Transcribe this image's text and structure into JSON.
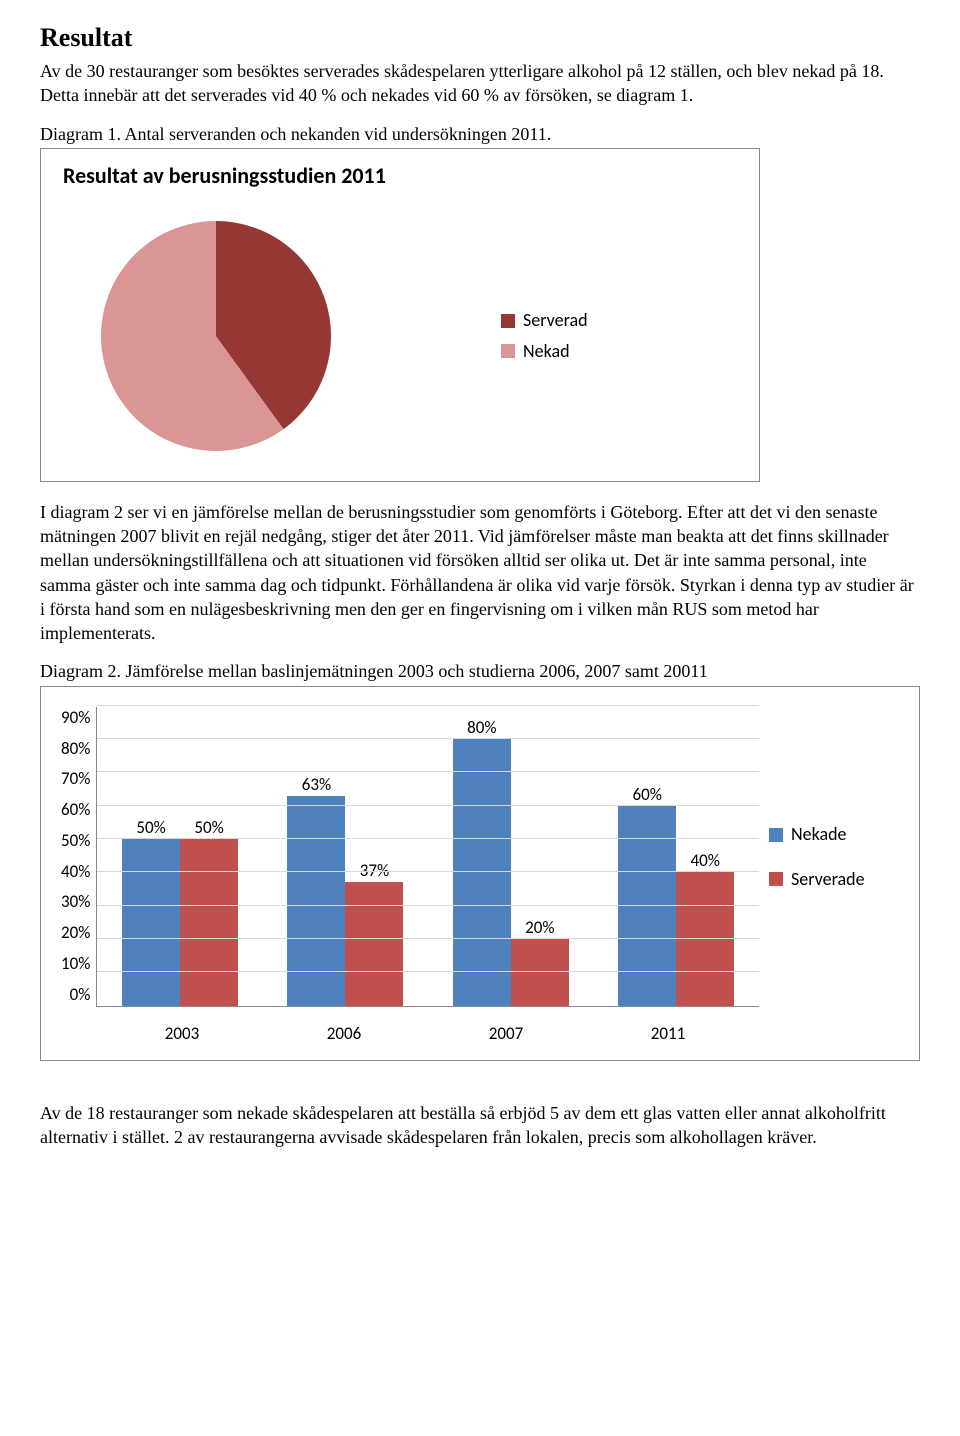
{
  "heading": "Resultat",
  "para1": "Av de 30 restauranger som besöktes serverades skådespelaren ytterligare alkohol på 12 ställen, och blev nekad på 18. Detta innebär att det serverades vid 40 % och nekades vid 60 % av försöken, se diagram 1.",
  "caption1": "Diagram 1. Antal serveranden och nekanden vid undersökningen 2011.",
  "pie_chart": {
    "title": "Resultat av berusningsstudien 2011",
    "series": [
      {
        "label": "Serverad",
        "value": 40,
        "color": "#953735"
      },
      {
        "label": "Nekad",
        "value": 60,
        "color": "#d99694"
      }
    ]
  },
  "para2": "I diagram 2 ser vi en jämförelse mellan de berusningsstudier som genomförts i Göteborg. Efter att det vi den senaste mätningen 2007 blivit en rejäl nedgång, stiger det åter 2011. Vid jämförelser måste man beakta att det finns skillnader mellan undersökningstillfällena och att situationen vid försöken alltid ser olika ut. Det är inte samma personal, inte samma gäster och inte samma dag och tidpunkt. Förhållandena är olika vid varje försök. Styrkan i denna typ av studier är i första hand som en nulägesbeskrivning men den ger en fingervisning om i vilken mån RUS som metod har implementerats.",
  "caption2": "Diagram 2. Jämförelse mellan baslinjemätningen 2003 och studierna 2006, 2007 samt 20011",
  "bar_chart": {
    "ymax": 90,
    "ystep": 10,
    "yticks": [
      "90%",
      "80%",
      "70%",
      "60%",
      "50%",
      "40%",
      "30%",
      "20%",
      "10%",
      "0%"
    ],
    "categories": [
      "2003",
      "2006",
      "2007",
      "2011"
    ],
    "series": [
      {
        "name": "Nekade",
        "color": "#4f81bd",
        "values": [
          50,
          63,
          80,
          60
        ]
      },
      {
        "name": "Serverade",
        "color": "#c0504d",
        "values": [
          50,
          37,
          20,
          40
        ]
      }
    ],
    "labels": [
      [
        "50%",
        "50%"
      ],
      [
        "63%",
        "37%"
      ],
      [
        "80%",
        "20%"
      ],
      [
        "60%",
        "40%"
      ]
    ],
    "grid_color": "#d9d9d9"
  },
  "para3": "Av de 18 restauranger som nekade skådespelaren att beställa så erbjöd 5 av dem ett glas vatten eller annat alkoholfritt alternativ i stället. 2 av restaurangerna avvisade skådespelaren från lokalen, precis som alkohollagen kräver."
}
